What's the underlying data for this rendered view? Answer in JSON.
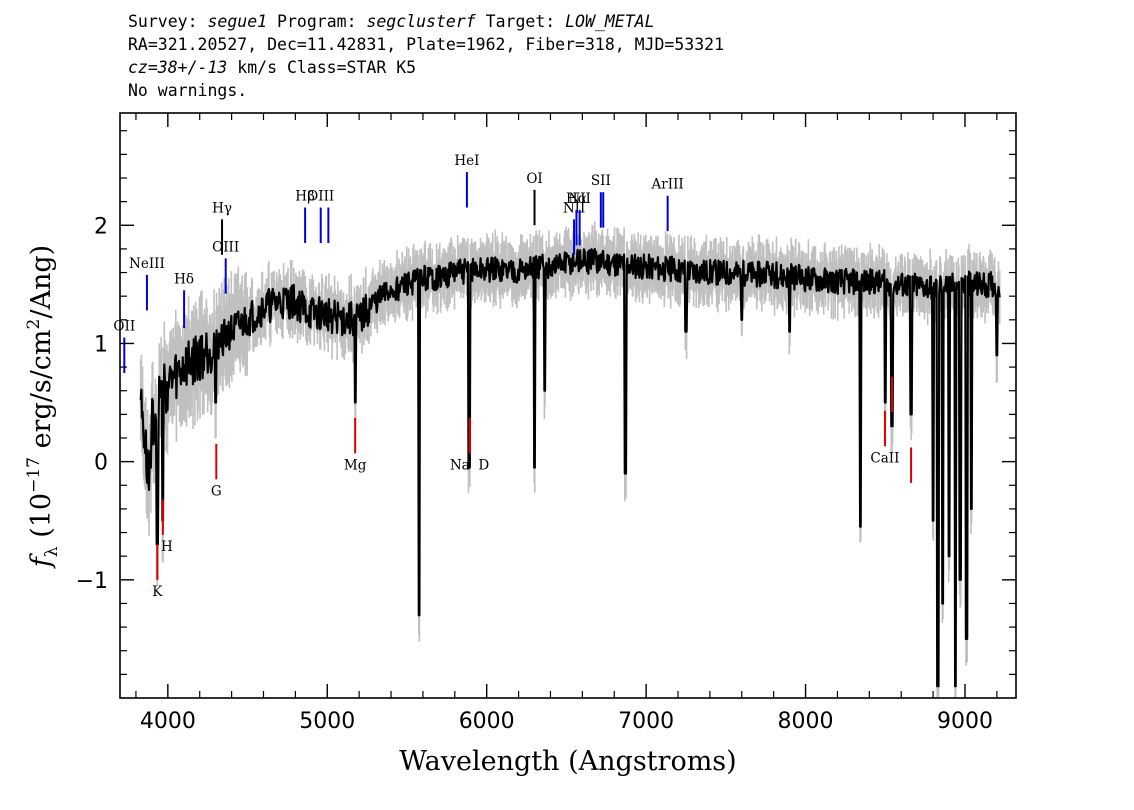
{
  "header": {
    "line1": {
      "survey_label": "Survey: ",
      "survey": "segue1",
      "program_label": " Program: ",
      "program": "segclusterf",
      "target_label": " Target: ",
      "target": "LOW_METAL"
    },
    "line2": "RA=321.20527, Dec=11.42831, Plate=1962, Fiber=318, MJD=53321",
    "line3": {
      "cz": "cz=38+/-13",
      "rest": " km/s Class=STAR K5"
    },
    "line4": "No warnings."
  },
  "chart_data": {
    "type": "line",
    "xlabel": "Wavelength (Angstroms)",
    "ylabel": "f_λ (10^-17 erg/s/cm^2/Ang)",
    "ylabel_parts": {
      "f": "f",
      "sub": "λ",
      "pre": " (10",
      "sup1": "−17",
      "mid": " erg/s/cm",
      "sup2": "2",
      "post": "/Ang)"
    },
    "xlim": [
      3700,
      9320
    ],
    "ylim": [
      -2.0,
      2.95
    ],
    "x_ticks": [
      4000,
      5000,
      6000,
      7000,
      8000,
      9000
    ],
    "x_tick_labels": [
      "4000",
      "5000",
      "6000",
      "7000",
      "8000",
      "9000"
    ],
    "y_ticks": [
      -1,
      0,
      1,
      2
    ],
    "y_tick_labels": [
      "−1",
      "0",
      "1",
      "2"
    ],
    "series": [
      {
        "color": "#000000",
        "anchors": [
          [
            3830,
            0.55
          ],
          [
            3860,
            0.1
          ],
          [
            3880,
            -0.2
          ],
          [
            3900,
            0.3
          ],
          [
            3950,
            0.6
          ],
          [
            4000,
            0.65
          ],
          [
            4100,
            0.8
          ],
          [
            4200,
            0.9
          ],
          [
            4300,
            1.0
          ],
          [
            4400,
            1.1
          ],
          [
            4500,
            1.2
          ],
          [
            4600,
            1.3
          ],
          [
            4700,
            1.35
          ],
          [
            4800,
            1.35
          ],
          [
            4900,
            1.25
          ],
          [
            5000,
            1.25
          ],
          [
            5100,
            1.2
          ],
          [
            5200,
            1.2
          ],
          [
            5300,
            1.35
          ],
          [
            5400,
            1.45
          ],
          [
            5500,
            1.5
          ],
          [
            5600,
            1.55
          ],
          [
            5700,
            1.55
          ],
          [
            5800,
            1.6
          ],
          [
            6000,
            1.62
          ],
          [
            6200,
            1.62
          ],
          [
            6400,
            1.65
          ],
          [
            6600,
            1.7
          ],
          [
            6800,
            1.68
          ],
          [
            7000,
            1.65
          ],
          [
            7200,
            1.62
          ],
          [
            7500,
            1.6
          ],
          [
            7800,
            1.58
          ],
          [
            8000,
            1.55
          ],
          [
            8200,
            1.53
          ],
          [
            8400,
            1.52
          ],
          [
            8600,
            1.5
          ],
          [
            8800,
            1.48
          ],
          [
            9000,
            1.5
          ],
          [
            9220,
            1.5
          ]
        ],
        "dips": [
          [
            3934,
            -0.7
          ],
          [
            3969,
            -0.5
          ],
          [
            4300,
            0.5
          ],
          [
            5175,
            0.5
          ],
          [
            5577,
            -1.3
          ],
          [
            5890,
            -0.05
          ],
          [
            6300,
            -0.05
          ],
          [
            6363,
            0.6
          ],
          [
            6870,
            -0.1
          ],
          [
            7250,
            1.1
          ],
          [
            7600,
            1.2
          ],
          [
            7900,
            1.1
          ],
          [
            8345,
            -0.55
          ],
          [
            8500,
            0.5
          ],
          [
            8542,
            0.3
          ],
          [
            8662,
            0.4
          ],
          [
            8800,
            -0.5
          ],
          [
            8830,
            -1.9
          ],
          [
            8860,
            -1.2
          ],
          [
            8900,
            -0.8
          ],
          [
            8940,
            -1.9
          ],
          [
            8970,
            -1.0
          ],
          [
            9010,
            -1.5
          ],
          [
            9040,
            -0.4
          ],
          [
            9200,
            0.9
          ]
        ]
      },
      {
        "color": "#c0c0c0",
        "role": "error band"
      }
    ],
    "emission_lines": [
      {
        "label": "OII",
        "x": 3727,
        "y0": 0.75,
        "y1": 1.05
      },
      {
        "label": "NeIII",
        "x": 3869,
        "y0": 1.28,
        "y1": 1.58
      },
      {
        "label": "Hδ",
        "x": 4102,
        "y0": 1.13,
        "y1": 1.45
      },
      {
        "label": "Hγ",
        "x": 4340,
        "y0": 1.75,
        "y1": 2.05
      },
      {
        "label": "OIII",
        "x": 4363,
        "y0": 1.42,
        "y1": 1.72
      },
      {
        "label": "Hβ",
        "x": 4861,
        "y0": 1.85,
        "y1": 2.15
      },
      {
        "label": "OIII",
        "x": 4959,
        "y0": 1.85,
        "y1": 2.15
      },
      {
        "label": "",
        "x": 5007,
        "y0": 1.85,
        "y1": 2.15
      },
      {
        "label": "HeI",
        "x": 5876,
        "y0": 2.15,
        "y1": 2.45
      },
      {
        "label": "OI",
        "x": 6300,
        "y0": 2.0,
        "y1": 2.3
      },
      {
        "label": "NII",
        "x": 6548,
        "y0": 1.75,
        "y1": 2.05
      },
      {
        "label": "Hα",
        "x": 6563,
        "y0": 1.83,
        "y1": 2.13
      },
      {
        "label": "NII",
        "x": 6583,
        "y0": 1.83,
        "y1": 2.13
      },
      {
        "label": "SII",
        "x": 6716,
        "y0": 1.98,
        "y1": 2.28
      },
      {
        "label": "",
        "x": 6731,
        "y0": 1.98,
        "y1": 2.28
      },
      {
        "label": "ArIII",
        "x": 7135,
        "y0": 1.95,
        "y1": 2.25
      }
    ],
    "absorption_lines": [
      {
        "label": "K",
        "x": 3934,
        "y0": -1.0,
        "y1": -0.7
      },
      {
        "label": "H",
        "x": 3969,
        "y0": -0.62,
        "y1": -0.32
      },
      {
        "label": "G",
        "x": 4304,
        "y0": -0.15,
        "y1": 0.15
      },
      {
        "label": "Mg",
        "x": 5175,
        "y0": 0.07,
        "y1": 0.37
      },
      {
        "label": "Na",
        "x": 5894,
        "y0": 0.07,
        "y1": 0.37
      },
      {
        "label": "D",
        "x": 5894,
        "y0": 0.07,
        "y1": 0.37
      },
      {
        "label": "CaII",
        "x": 8498,
        "y0": 0.13,
        "y1": 0.43
      },
      {
        "label": "",
        "x": 8542,
        "y0": 0.42,
        "y1": 0.72
      },
      {
        "label": "",
        "x": 8662,
        "y0": -0.18,
        "y1": 0.12
      }
    ],
    "colors": {
      "flux": "#000000",
      "error": "#c0c0c0",
      "emission": "#0000dd",
      "emission_alt": "#000000",
      "absorption": "#dd0000"
    }
  }
}
